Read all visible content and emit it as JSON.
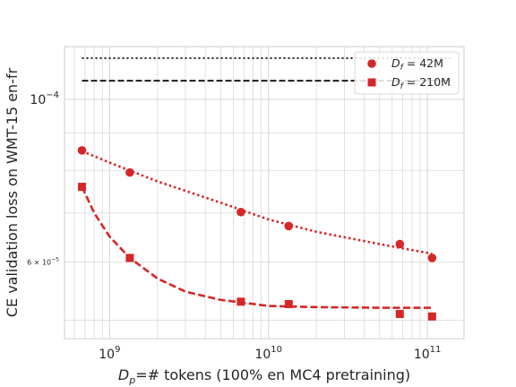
{
  "chart_data": {
    "type": "scatter",
    "xlabel": "D_p=# tokens (100% en MC4 pretraining)",
    "ylabel": "CE validation loss on WMT-15 en-fr",
    "x_scale": "log",
    "y_scale": "log",
    "xlim": [
      520000000.0,
      170000000000.0
    ],
    "ylim": [
      4.72e-05,
      0.000118
    ],
    "x_ticks": [
      {
        "value": 1000000000.0,
        "base": "10",
        "exp": "9"
      },
      {
        "value": 10000000000.0,
        "base": "10",
        "exp": "10"
      },
      {
        "value": 100000000000.0,
        "base": "10",
        "exp": "11"
      }
    ],
    "y_ticks": [
      {
        "value": 0.0001,
        "base": "10",
        "exp": "−4",
        "minor": false
      },
      {
        "value": 6e-05,
        "base": "6 × 10",
        "exp": "−5",
        "minor": true
      }
    ],
    "grid": true,
    "legend_position": "top-right",
    "series": [
      {
        "name": "D_f = 42M",
        "legend_label": {
          "main": "D",
          "sub": "f",
          "rest": " = 42M"
        },
        "marker": "circle",
        "color": "#d62728",
        "x": [
          670000000.0,
          1340000000.0,
          6700000000.0,
          13400000000.0,
          67000000000.0,
          107000000000.0
        ],
        "y": [
          8.52e-05,
          7.95e-05,
          7.02e-05,
          6.72e-05,
          6.35e-05,
          6.08e-05
        ],
        "fit_x": [
          670000000.0,
          1000000000.0,
          2000000000.0,
          5000000000.0,
          10000000000.0,
          20000000000.0,
          50000000000.0,
          107000000000.0
        ],
        "fit_y": [
          8.5e-05,
          8.2e-05,
          7.73e-05,
          7.23e-05,
          6.86e-05,
          6.6e-05,
          6.35e-05,
          6.16e-05
        ]
      },
      {
        "name": "D_f = 210M",
        "legend_label": {
          "main": "D",
          "sub": "f",
          "rest": " = 210M"
        },
        "marker": "square",
        "color": "#d62728",
        "x": [
          670000000.0,
          1340000000.0,
          6700000000.0,
          13400000000.0,
          67000000000.0,
          107000000000.0
        ],
        "y": [
          7.6e-05,
          6.08e-05,
          5.3e-05,
          5.26e-05,
          5.1e-05,
          5.06e-05
        ],
        "fit_x": [
          670000000.0,
          800000000.0,
          1000000000.0,
          1340000000.0,
          2000000000.0,
          3000000000.0,
          5000000000.0,
          10000000000.0,
          20000000000.0,
          50000000000.0,
          107000000000.0
        ],
        "fit_y": [
          7.6e-05,
          7e-05,
          6.5e-05,
          6.08e-05,
          5.7e-05,
          5.47e-05,
          5.33e-05,
          5.23e-05,
          5.21e-05,
          5.2e-05,
          5.2e-05
        ]
      }
    ],
    "reference_lines": [
      {
        "y": 0.0001138,
        "style": "dotted",
        "color": "#1a1a1a",
        "x_start": 670000000.0,
        "x_end": 140000000000.0
      },
      {
        "y": 0.000106,
        "style": "dashed",
        "color": "#1a1a1a",
        "x_start": 670000000.0,
        "x_end": 140000000000.0
      }
    ]
  }
}
